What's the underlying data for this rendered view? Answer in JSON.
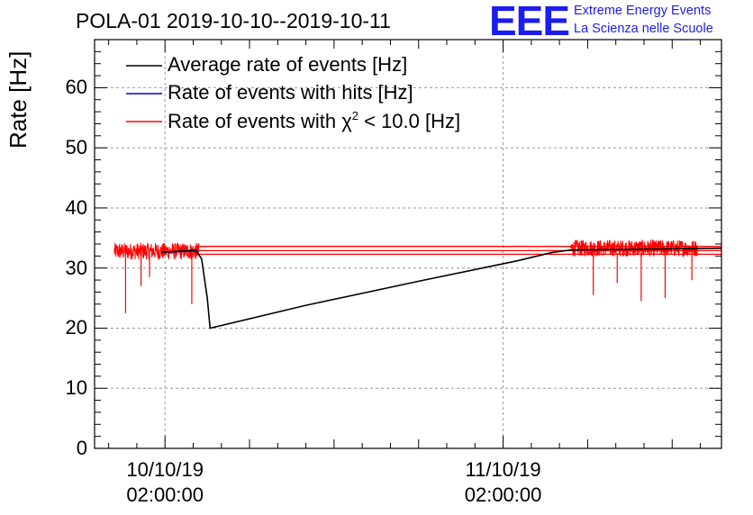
{
  "chart_data": {
    "type": "line",
    "title": "POLA-01 2019-10-10--2019-10-11",
    "ylabel": "Rate [Hz]",
    "xlabel": "",
    "ylim": [
      0,
      68
    ],
    "yticks": [
      0,
      10,
      20,
      30,
      40,
      50,
      60
    ],
    "xlim_hours": [
      -3.0,
      41.5
    ],
    "xticks": [
      {
        "hour": 2,
        "date": "10/10/19",
        "time": "02:00:00"
      },
      {
        "hour": 26,
        "date": "11/10/19",
        "time": "02:00:00"
      }
    ],
    "grid": true,
    "legend_position": "top-left",
    "series": [
      {
        "name": "Average rate of events [Hz]",
        "color": "#000000",
        "points": [
          [
            1.8,
            32.6
          ],
          [
            4.2,
            33.0
          ],
          [
            4.6,
            31.5
          ],
          [
            5.0,
            25.0
          ],
          [
            5.2,
            20.0
          ],
          [
            12.0,
            23.8
          ],
          [
            20.0,
            27.8
          ],
          [
            27.0,
            31.2
          ],
          [
            29.5,
            32.6
          ],
          [
            30.8,
            33.0
          ],
          [
            41.5,
            33.3
          ]
        ]
      },
      {
        "name": "Rate of events with hits [Hz]",
        "color": "#0000cc",
        "points": [
          [
            1.8,
            32.6
          ],
          [
            4.2,
            32.8
          ]
        ]
      },
      {
        "name": "Rate of events with χ² < 10.0 [Hz]",
        "legend_prefix": "Rate of events with χ",
        "legend_sup": "2",
        "legend_suffix": " < 10.0 [Hz]",
        "color": "#ff0000",
        "noisy_segments": [
          {
            "start": -1.6,
            "end": 4.4,
            "mean": 32.8,
            "noise": 1.0
          },
          {
            "start": 30.8,
            "end": 39.8,
            "mean": 33.3,
            "noise": 1.0
          }
        ],
        "spikes": [
          [
            -0.8,
            22.5
          ],
          [
            0.3,
            27.0
          ],
          [
            0.9,
            28.5
          ],
          [
            3.9,
            24.0
          ],
          [
            32.4,
            25.5
          ],
          [
            34.1,
            27.5
          ],
          [
            35.8,
            24.5
          ],
          [
            37.5,
            25.0
          ],
          [
            39.4,
            28.0
          ]
        ],
        "bridge_levels": [
          32.3,
          32.9,
          33.6
        ]
      }
    ]
  },
  "logo": {
    "mark": "EEE",
    "line1": "Extreme Energy Events",
    "line2": "La Scienza nelle Scuole"
  }
}
